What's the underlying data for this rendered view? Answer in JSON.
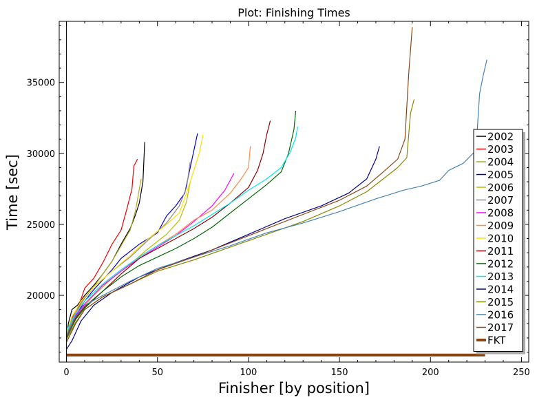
{
  "chart_data": {
    "type": "line",
    "title": "Plot: Finishing Times",
    "xlabel": "Finisher [by position]",
    "ylabel": "Time [sec]",
    "xlim": [
      -4,
      254
    ],
    "ylim": [
      15300,
      39300
    ],
    "xticks": [
      0,
      50,
      100,
      150,
      200,
      250
    ],
    "yticks": [
      20000,
      25000,
      30000,
      35000
    ],
    "grid": false,
    "legend_position": "right",
    "series": [
      {
        "name": "2002",
        "color": "#000000",
        "width": 1.2,
        "points": [
          [
            0,
            16900
          ],
          [
            1,
            18000
          ],
          [
            3,
            19000
          ],
          [
            6,
            19300
          ],
          [
            10,
            20000
          ],
          [
            15,
            20700
          ],
          [
            20,
            21500
          ],
          [
            25,
            22400
          ],
          [
            30,
            23600
          ],
          [
            35,
            24700
          ],
          [
            38,
            25700
          ],
          [
            40,
            26500
          ],
          [
            42,
            28000
          ],
          [
            43,
            30800
          ]
        ]
      },
      {
        "name": "2003",
        "color": "#ee0000",
        "width": 1.2,
        "points": [
          [
            0,
            17200
          ],
          [
            1,
            17700
          ],
          [
            3,
            18400
          ],
          [
            6,
            19000
          ],
          [
            10,
            20500
          ],
          [
            15,
            21200
          ],
          [
            20,
            22300
          ],
          [
            25,
            23600
          ],
          [
            30,
            24600
          ],
          [
            33,
            26000
          ],
          [
            36,
            27500
          ],
          [
            37,
            29100
          ],
          [
            39,
            29600
          ]
        ]
      },
      {
        "name": "2004",
        "color": "#aaaa22",
        "width": 1.2,
        "points": [
          [
            0,
            17100
          ],
          [
            2,
            18000
          ],
          [
            5,
            18800
          ],
          [
            10,
            19800
          ],
          [
            15,
            20600
          ],
          [
            20,
            21500
          ],
          [
            25,
            22400
          ],
          [
            30,
            23500
          ],
          [
            35,
            24600
          ],
          [
            38,
            26000
          ],
          [
            41,
            28200
          ]
        ]
      },
      {
        "name": "2005",
        "color": "#0000cc",
        "width": 1.2,
        "points": [
          [
            0,
            16900
          ],
          [
            2,
            17900
          ],
          [
            5,
            18500
          ],
          [
            10,
            19600
          ],
          [
            15,
            20400
          ],
          [
            20,
            21100
          ],
          [
            25,
            21800
          ],
          [
            30,
            22600
          ],
          [
            40,
            23600
          ],
          [
            50,
            24400
          ],
          [
            55,
            25600
          ],
          [
            60,
            26300
          ],
          [
            65,
            27200
          ],
          [
            68,
            29000
          ],
          [
            70,
            30200
          ],
          [
            72,
            31400
          ]
        ]
      },
      {
        "name": "2006",
        "color": "#bbbb00",
        "width": 1.2,
        "points": [
          [
            0,
            17000
          ],
          [
            3,
            18000
          ],
          [
            8,
            19000
          ],
          [
            15,
            20000
          ],
          [
            25,
            21200
          ],
          [
            35,
            22200
          ],
          [
            45,
            23300
          ],
          [
            55,
            24300
          ],
          [
            62,
            25300
          ],
          [
            66,
            26600
          ],
          [
            68,
            28000
          ]
        ]
      },
      {
        "name": "2007",
        "color": "#888888",
        "width": 1.2,
        "points": [
          [
            0,
            17200
          ],
          [
            3,
            18300
          ],
          [
            8,
            19500
          ],
          [
            15,
            20600
          ],
          [
            25,
            21700
          ],
          [
            35,
            22700
          ],
          [
            45,
            23900
          ],
          [
            55,
            25100
          ],
          [
            62,
            26300
          ],
          [
            66,
            27600
          ],
          [
            68,
            29400
          ]
        ]
      },
      {
        "name": "2008",
        "color": "#ff00ff",
        "width": 1.2,
        "points": [
          [
            0,
            17000
          ],
          [
            5,
            18600
          ],
          [
            10,
            19400
          ],
          [
            20,
            20700
          ],
          [
            30,
            21700
          ],
          [
            40,
            22600
          ],
          [
            50,
            23400
          ],
          [
            60,
            24200
          ],
          [
            70,
            25200
          ],
          [
            80,
            26300
          ],
          [
            87,
            27400
          ],
          [
            92,
            28600
          ]
        ]
      },
      {
        "name": "2009",
        "color": "#ff8844",
        "width": 1.2,
        "points": [
          [
            0,
            17100
          ],
          [
            5,
            18800
          ],
          [
            10,
            19600
          ],
          [
            20,
            20800
          ],
          [
            30,
            21800
          ],
          [
            40,
            22700
          ],
          [
            50,
            23500
          ],
          [
            60,
            24300
          ],
          [
            70,
            25300
          ],
          [
            80,
            26000
          ],
          [
            90,
            27200
          ],
          [
            96,
            28200
          ],
          [
            100,
            29000
          ],
          [
            101,
            30500
          ]
        ]
      },
      {
        "name": "2010",
        "color": "#ffdd00",
        "width": 1.2,
        "points": [
          [
            0,
            17300
          ],
          [
            3,
            18500
          ],
          [
            8,
            19600
          ],
          [
            15,
            20600
          ],
          [
            25,
            21700
          ],
          [
            35,
            22800
          ],
          [
            45,
            24000
          ],
          [
            55,
            25000
          ],
          [
            62,
            25800
          ],
          [
            66,
            27200
          ],
          [
            70,
            28800
          ],
          [
            73,
            30000
          ],
          [
            75,
            31300
          ]
        ]
      },
      {
        "name": "2011",
        "color": "#880000",
        "width": 1.2,
        "points": [
          [
            0,
            17200
          ],
          [
            5,
            18400
          ],
          [
            10,
            19200
          ],
          [
            20,
            20300
          ],
          [
            30,
            21500
          ],
          [
            40,
            22600
          ],
          [
            50,
            23300
          ],
          [
            60,
            24000
          ],
          [
            70,
            24700
          ],
          [
            80,
            25500
          ],
          [
            90,
            26500
          ],
          [
            100,
            27600
          ],
          [
            105,
            28800
          ],
          [
            108,
            30000
          ],
          [
            110,
            31300
          ],
          [
            112,
            32300
          ]
        ]
      },
      {
        "name": "2012",
        "color": "#006600",
        "width": 1.2,
        "points": [
          [
            0,
            17000
          ],
          [
            5,
            18300
          ],
          [
            10,
            19100
          ],
          [
            20,
            20300
          ],
          [
            30,
            21300
          ],
          [
            40,
            22100
          ],
          [
            50,
            22700
          ],
          [
            60,
            23300
          ],
          [
            70,
            24000
          ],
          [
            80,
            24800
          ],
          [
            90,
            25800
          ],
          [
            100,
            26800
          ],
          [
            110,
            27800
          ],
          [
            118,
            28700
          ],
          [
            122,
            30000
          ],
          [
            125,
            31700
          ],
          [
            126,
            33000
          ]
        ]
      },
      {
        "name": "2013",
        "color": "#00e6e6",
        "width": 1.2,
        "points": [
          [
            0,
            17500
          ],
          [
            5,
            18700
          ],
          [
            10,
            19600
          ],
          [
            20,
            20800
          ],
          [
            30,
            21800
          ],
          [
            40,
            22700
          ],
          [
            50,
            23500
          ],
          [
            60,
            24200
          ],
          [
            70,
            24900
          ],
          [
            80,
            25700
          ],
          [
            90,
            26500
          ],
          [
            100,
            27400
          ],
          [
            110,
            28200
          ],
          [
            118,
            29000
          ],
          [
            123,
            30100
          ],
          [
            126,
            31100
          ],
          [
            127,
            31900
          ]
        ]
      },
      {
        "name": "2014",
        "color": "#000088",
        "width": 1.2,
        "points": [
          [
            0,
            16200
          ],
          [
            3,
            16800
          ],
          [
            8,
            18200
          ],
          [
            15,
            19300
          ],
          [
            25,
            20200
          ],
          [
            40,
            21300
          ],
          [
            60,
            22300
          ],
          [
            80,
            23200
          ],
          [
            100,
            24300
          ],
          [
            120,
            25400
          ],
          [
            140,
            26300
          ],
          [
            155,
            27200
          ],
          [
            165,
            28200
          ],
          [
            170,
            29600
          ],
          [
            172,
            30500
          ]
        ]
      },
      {
        "name": "2015",
        "color": "#888800",
        "width": 1.2,
        "points": [
          [
            0,
            16900
          ],
          [
            5,
            18100
          ],
          [
            10,
            19000
          ],
          [
            20,
            19900
          ],
          [
            35,
            20800
          ],
          [
            50,
            21700
          ],
          [
            70,
            22500
          ],
          [
            90,
            23400
          ],
          [
            110,
            24300
          ],
          [
            130,
            25200
          ],
          [
            150,
            26300
          ],
          [
            165,
            27300
          ],
          [
            175,
            28300
          ],
          [
            182,
            29000
          ],
          [
            187,
            29700
          ],
          [
            189,
            32800
          ],
          [
            191,
            33800
          ]
        ]
      },
      {
        "name": "2016",
        "color": "#4682b4",
        "width": 1.2,
        "points": [
          [
            0,
            17200
          ],
          [
            5,
            18500
          ],
          [
            10,
            19300
          ],
          [
            20,
            20000
          ],
          [
            35,
            21000
          ],
          [
            50,
            21900
          ],
          [
            70,
            22700
          ],
          [
            90,
            23500
          ],
          [
            110,
            24400
          ],
          [
            130,
            25100
          ],
          [
            150,
            25900
          ],
          [
            170,
            26800
          ],
          [
            185,
            27400
          ],
          [
            195,
            27700
          ],
          [
            205,
            28100
          ],
          [
            210,
            28800
          ],
          [
            218,
            29300
          ],
          [
            225,
            30200
          ],
          [
            227,
            34200
          ],
          [
            229,
            35500
          ],
          [
            231,
            36600
          ]
        ]
      },
      {
        "name": "2017",
        "color": "#8b4513",
        "width": 1.2,
        "points": [
          [
            0,
            16700
          ],
          [
            5,
            18000
          ],
          [
            10,
            19000
          ],
          [
            20,
            19900
          ],
          [
            35,
            20800
          ],
          [
            50,
            21800
          ],
          [
            70,
            22700
          ],
          [
            90,
            23700
          ],
          [
            110,
            24700
          ],
          [
            130,
            25700
          ],
          [
            150,
            26700
          ],
          [
            165,
            27700
          ],
          [
            175,
            28800
          ],
          [
            182,
            29600
          ],
          [
            186,
            31000
          ],
          [
            188,
            35500
          ],
          [
            190,
            38900
          ]
        ]
      },
      {
        "name": "FKT",
        "color": "#8b4513",
        "width": 4,
        "points": [
          [
            0,
            15800
          ],
          [
            230,
            15800
          ]
        ]
      }
    ]
  }
}
